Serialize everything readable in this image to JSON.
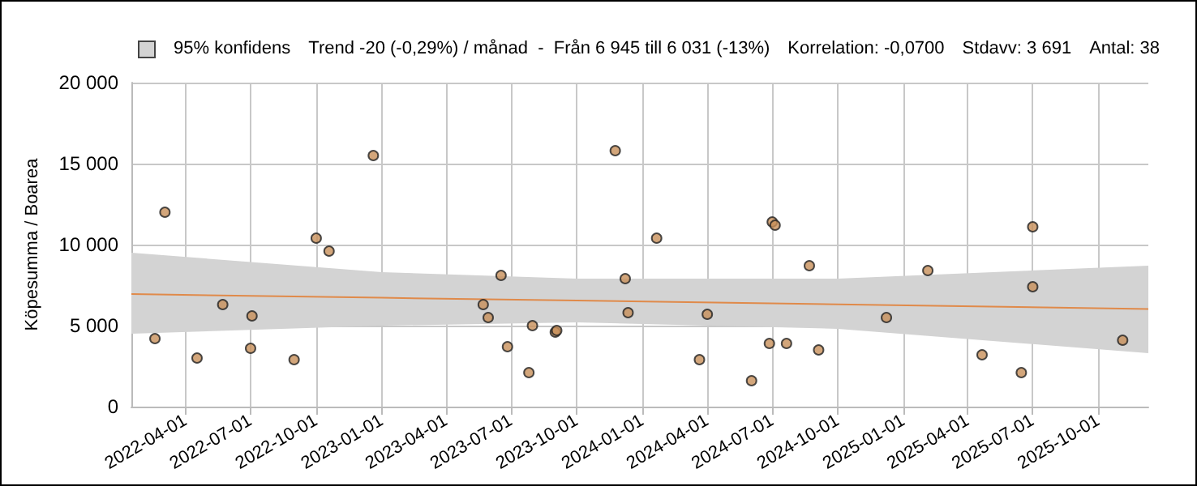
{
  "chart_data": {
    "type": "scatter",
    "ylabel": "Köpesumma / Boarea",
    "legend_title": "95% konfidens",
    "annotations": [
      "Trend -20 (-0,29%) / månad  -  Från 6 945 till 6 031 (-13%)",
      "Korrelation: -0,0700",
      "Stdavv: 3 691",
      "Antal: 38"
    ],
    "xlim": [
      "2022-01-15",
      "2025-12-10"
    ],
    "xticks": [
      "2022-04-01",
      "2022-07-01",
      "2022-10-01",
      "2023-01-01",
      "2023-04-01",
      "2023-07-01",
      "2023-10-01",
      "2024-01-01",
      "2024-04-01",
      "2024-07-01",
      "2024-10-01",
      "2025-01-01",
      "2025-04-01",
      "2025-07-01",
      "2025-10-01"
    ],
    "ylim": [
      0,
      20000
    ],
    "yticks": [
      0,
      {
        "value": 5000,
        "label": "5 000"
      },
      {
        "value": 10000,
        "label": "10 000"
      },
      {
        "value": 15000,
        "label": "15 000"
      },
      {
        "value": 20000,
        "label": "20 000"
      }
    ],
    "grid": true,
    "marker": "circle",
    "series": [
      {
        "type": "scatter",
        "color": "#c8905a",
        "x": [
          "2022-02-17",
          "2022-03-03",
          "2022-04-17",
          "2022-05-23",
          "2022-07-03",
          "2022-07-01",
          "2022-08-31",
          "2022-10-01",
          "2022-10-19",
          "2022-12-20",
          "2023-05-23",
          "2023-05-30",
          "2023-06-17",
          "2023-06-26",
          "2023-07-26",
          "2023-07-31",
          "2023-09-01",
          "2023-09-03",
          "2023-11-24",
          "2023-12-08",
          "2023-12-12",
          "2024-01-21",
          "2024-03-21",
          "2024-04-01",
          "2024-06-02",
          "2024-06-27",
          "2024-07-01",
          "2024-07-05",
          "2024-07-21",
          "2024-08-22",
          "2024-09-04",
          "2024-12-08",
          "2025-02-04",
          "2025-04-21",
          "2025-06-15",
          "2025-07-01",
          "2025-07-01",
          "2025-11-04"
        ],
        "values": [
          4200,
          12000,
          3000,
          6300,
          5600,
          3600,
          2900,
          10400,
          9600,
          15500,
          6300,
          5500,
          8100,
          3700,
          2100,
          5000,
          4600,
          4700,
          15800,
          7900,
          5800,
          10400,
          2900,
          5700,
          1600,
          3900,
          11400,
          11200,
          3900,
          8700,
          3500,
          5500,
          8400,
          3200,
          2100,
          11100,
          7400,
          4100
        ]
      },
      {
        "type": "line",
        "color": "#e08a4a",
        "marker": "none",
        "x": [
          "2022-01-15",
          "2023-01-01",
          "2023-10-01",
          "2024-10-01",
          "2025-12-10"
        ],
        "values": [
          6945,
          6720,
          6545,
          6310,
          6031
        ],
        "lower": [
          4500,
          5000,
          5200,
          4800,
          3300
        ],
        "upper": [
          9500,
          8300,
          7900,
          7900,
          8700
        ]
      }
    ]
  }
}
